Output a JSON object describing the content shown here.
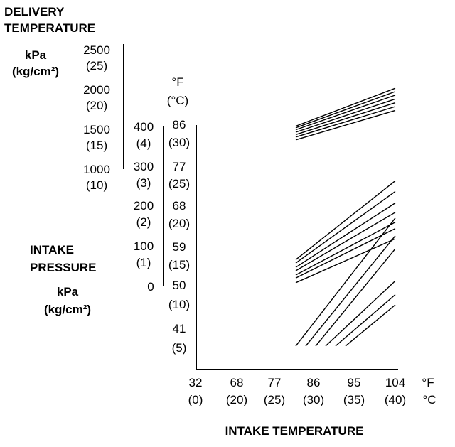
{
  "chart_data": {
    "type": "line",
    "title": "DELIVERY TEMPERATURE",
    "xlabel": "INTAKE TEMPERATURE",
    "x_units": [
      "°F",
      "°C"
    ],
    "x_ticks": [
      {
        "f": "32",
        "c": "(0)"
      },
      {
        "f": "68",
        "c": "(20)"
      },
      {
        "f": "77",
        "c": "(25)"
      },
      {
        "f": "86",
        "c": "(30)"
      },
      {
        "f": "95",
        "c": "(35)"
      },
      {
        "f": "104",
        "c": "(40)"
      }
    ],
    "delivery_pressure_axis": {
      "unit": [
        "kPa",
        "(kg/cm²)"
      ],
      "ticks": [
        {
          "kpa": "2500",
          "kg": "(25)"
        },
        {
          "kpa": "2000",
          "kg": "(20)"
        },
        {
          "kpa": "1500",
          "kg": "(15)"
        },
        {
          "kpa": "1000",
          "kg": "(10)"
        }
      ]
    },
    "intake_pressure_axis": {
      "label": [
        "INTAKE",
        "PRESSURE"
      ],
      "unit": [
        "kPa",
        "(kg/cm²)"
      ],
      "ticks": [
        {
          "kpa": "400",
          "kg": "(4)"
        },
        {
          "kpa": "300",
          "kg": "(3)"
        },
        {
          "kpa": "200",
          "kg": "(2)"
        },
        {
          "kpa": "100",
          "kg": "(1)"
        },
        {
          "kpa": "0",
          "kg": ""
        }
      ]
    },
    "temperature_axis": {
      "unit": [
        "°F",
        "(°C)"
      ],
      "ticks": [
        {
          "f": "86",
          "c": "(30)"
        },
        {
          "f": "77",
          "c": "(25)"
        },
        {
          "f": "68",
          "c": "(20)"
        },
        {
          "f": "59",
          "c": "(15)"
        },
        {
          "f": "50",
          "c": "(10)"
        },
        {
          "f": "41",
          "c": "(5)"
        }
      ]
    },
    "series_groups": [
      {
        "group": "delivery-pressure",
        "series": [
          {
            "x": [
              20,
              40
            ],
            "y": [
              12.77,
              19.03
            ]
          },
          {
            "x": [
              20,
              40
            ],
            "y": [
              12.49,
              18.48
            ]
          },
          {
            "x": [
              20,
              40
            ],
            "y": [
              12.16,
              17.89
            ]
          },
          {
            "x": [
              20,
              40
            ],
            "y": [
              11.76,
              17.26
            ]
          },
          {
            "x": [
              20,
              40
            ],
            "y": [
              11.36,
              16.63
            ]
          },
          {
            "x": [
              20,
              40
            ],
            "y": [
              10.96,
              16.0
            ]
          },
          {
            "x": [
              20,
              40
            ],
            "y": [
              10.49,
              15.37
            ]
          }
        ]
      },
      {
        "group": "intake-pressure",
        "series": [
          {
            "x": [
              20,
              40
            ],
            "y": [
              0.61,
              2.46
            ]
          },
          {
            "x": [
              20,
              40
            ],
            "y": [
              0.53,
              2.21
            ]
          },
          {
            "x": [
              20,
              40
            ],
            "y": [
              0.43,
              1.94
            ]
          },
          {
            "x": [
              20,
              40
            ],
            "y": [
              0.35,
              1.72
            ]
          },
          {
            "x": [
              20,
              40
            ],
            "y": [
              0.25,
              1.49
            ]
          },
          {
            "x": [
              20,
              40
            ],
            "y": [
              0.18,
              1.34
            ]
          },
          {
            "x": [
              20,
              40
            ],
            "y": [
              0.07,
              1.1
            ]
          }
        ]
      },
      {
        "group": "delivery-temperature",
        "series": [
          {
            "x": [
              20,
              40
            ],
            "y": [
              5.53,
              36.58
            ]
          },
          {
            "x": [
              22,
              40
            ],
            "y": [
              5.53,
              32.27
            ]
          },
          {
            "x": [
              24,
              40
            ],
            "y": [
              5.53,
              29.12
            ]
          },
          {
            "x": [
              26,
              40
            ],
            "y": [
              5.53,
              21.32
            ]
          },
          {
            "x": [
              28,
              40
            ],
            "y": [
              5.53,
              18.0
            ]
          },
          {
            "x": [
              30,
              40
            ],
            "y": [
              5.53,
              15.51
            ]
          }
        ]
      }
    ],
    "grid": false,
    "legend": "none"
  }
}
